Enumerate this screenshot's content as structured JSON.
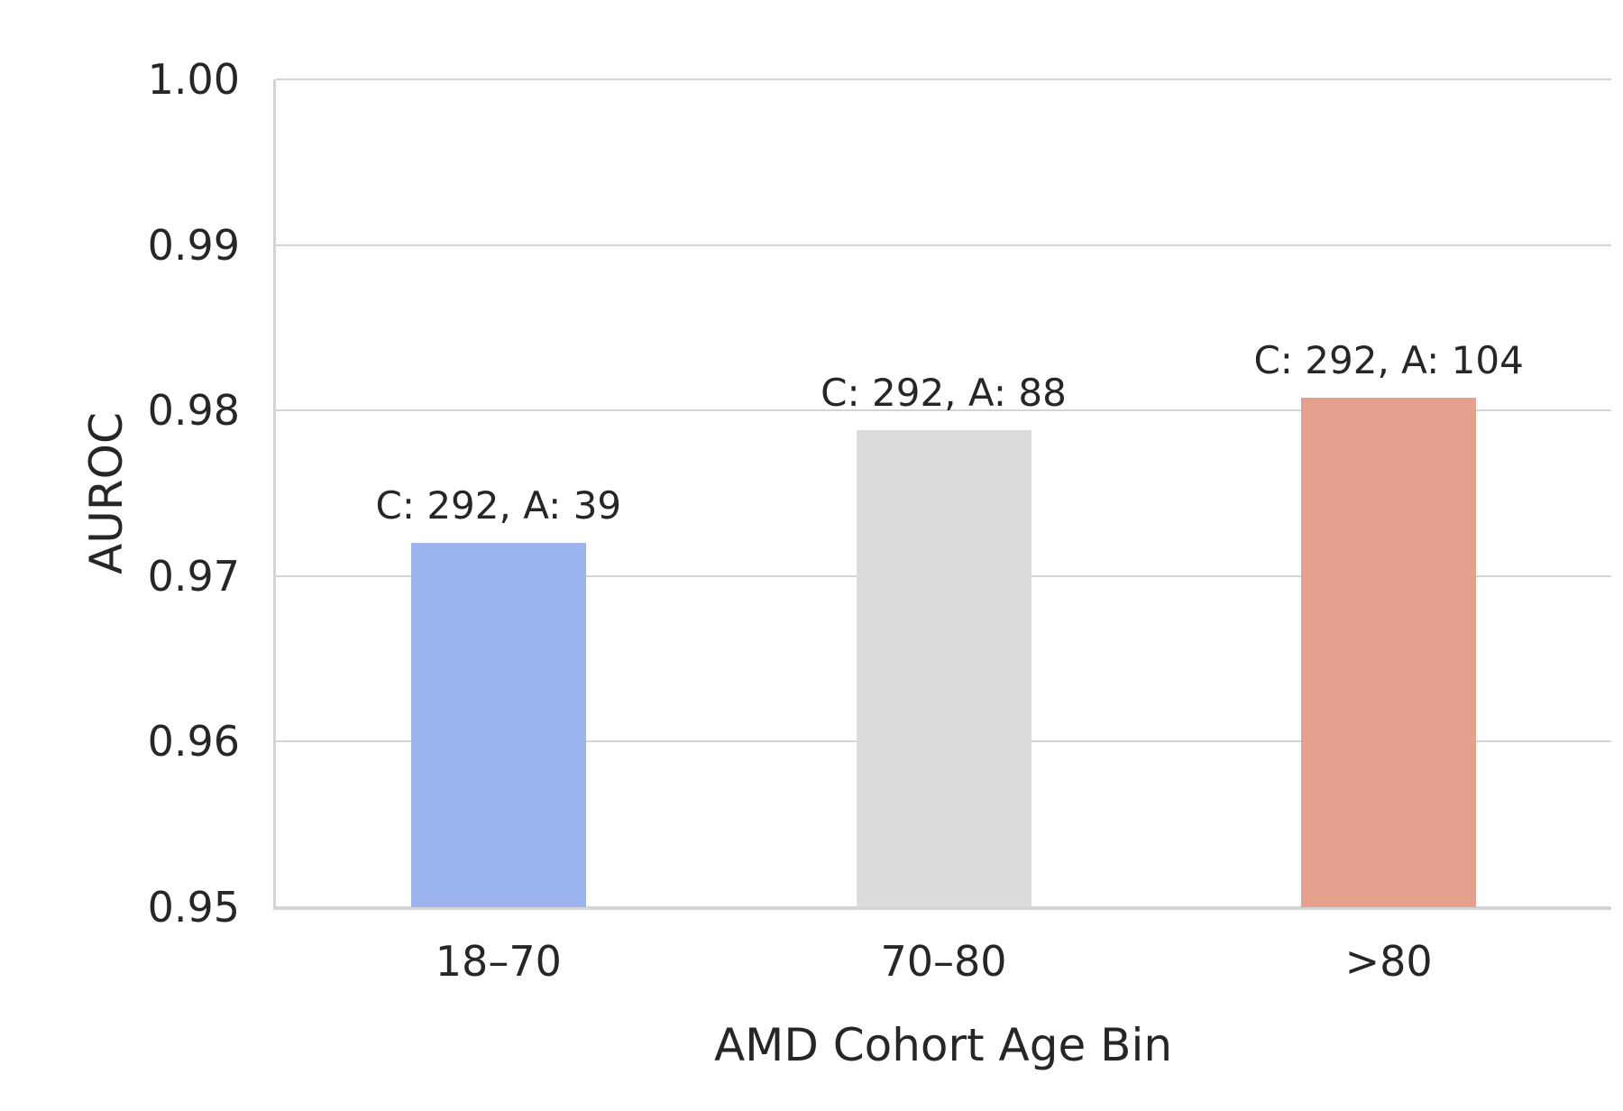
{
  "chart_data": {
    "type": "bar",
    "title": "",
    "xlabel": "AMD Cohort Age Bin",
    "ylabel": "AUROC",
    "categories": [
      "18–70",
      "70–80",
      ">80"
    ],
    "values": [
      0.972,
      0.9788,
      0.9808
    ],
    "bar_labels": [
      "C: 292, A: 39",
      "C: 292, A: 88",
      "C: 292, A: 104"
    ],
    "bar_colors": [
      "#9bb4ee",
      "#dcdcdc",
      "#e4a08c"
    ],
    "ylim": [
      0.95,
      1.0
    ],
    "yticks": [
      "0.95",
      "0.96",
      "0.97",
      "0.98",
      "0.99",
      "1.00"
    ],
    "grid": "horizontal",
    "legend": "none"
  },
  "style": {
    "text_color": "#262626",
    "grid_color": "#d4d4d4",
    "background": "#ffffff"
  }
}
